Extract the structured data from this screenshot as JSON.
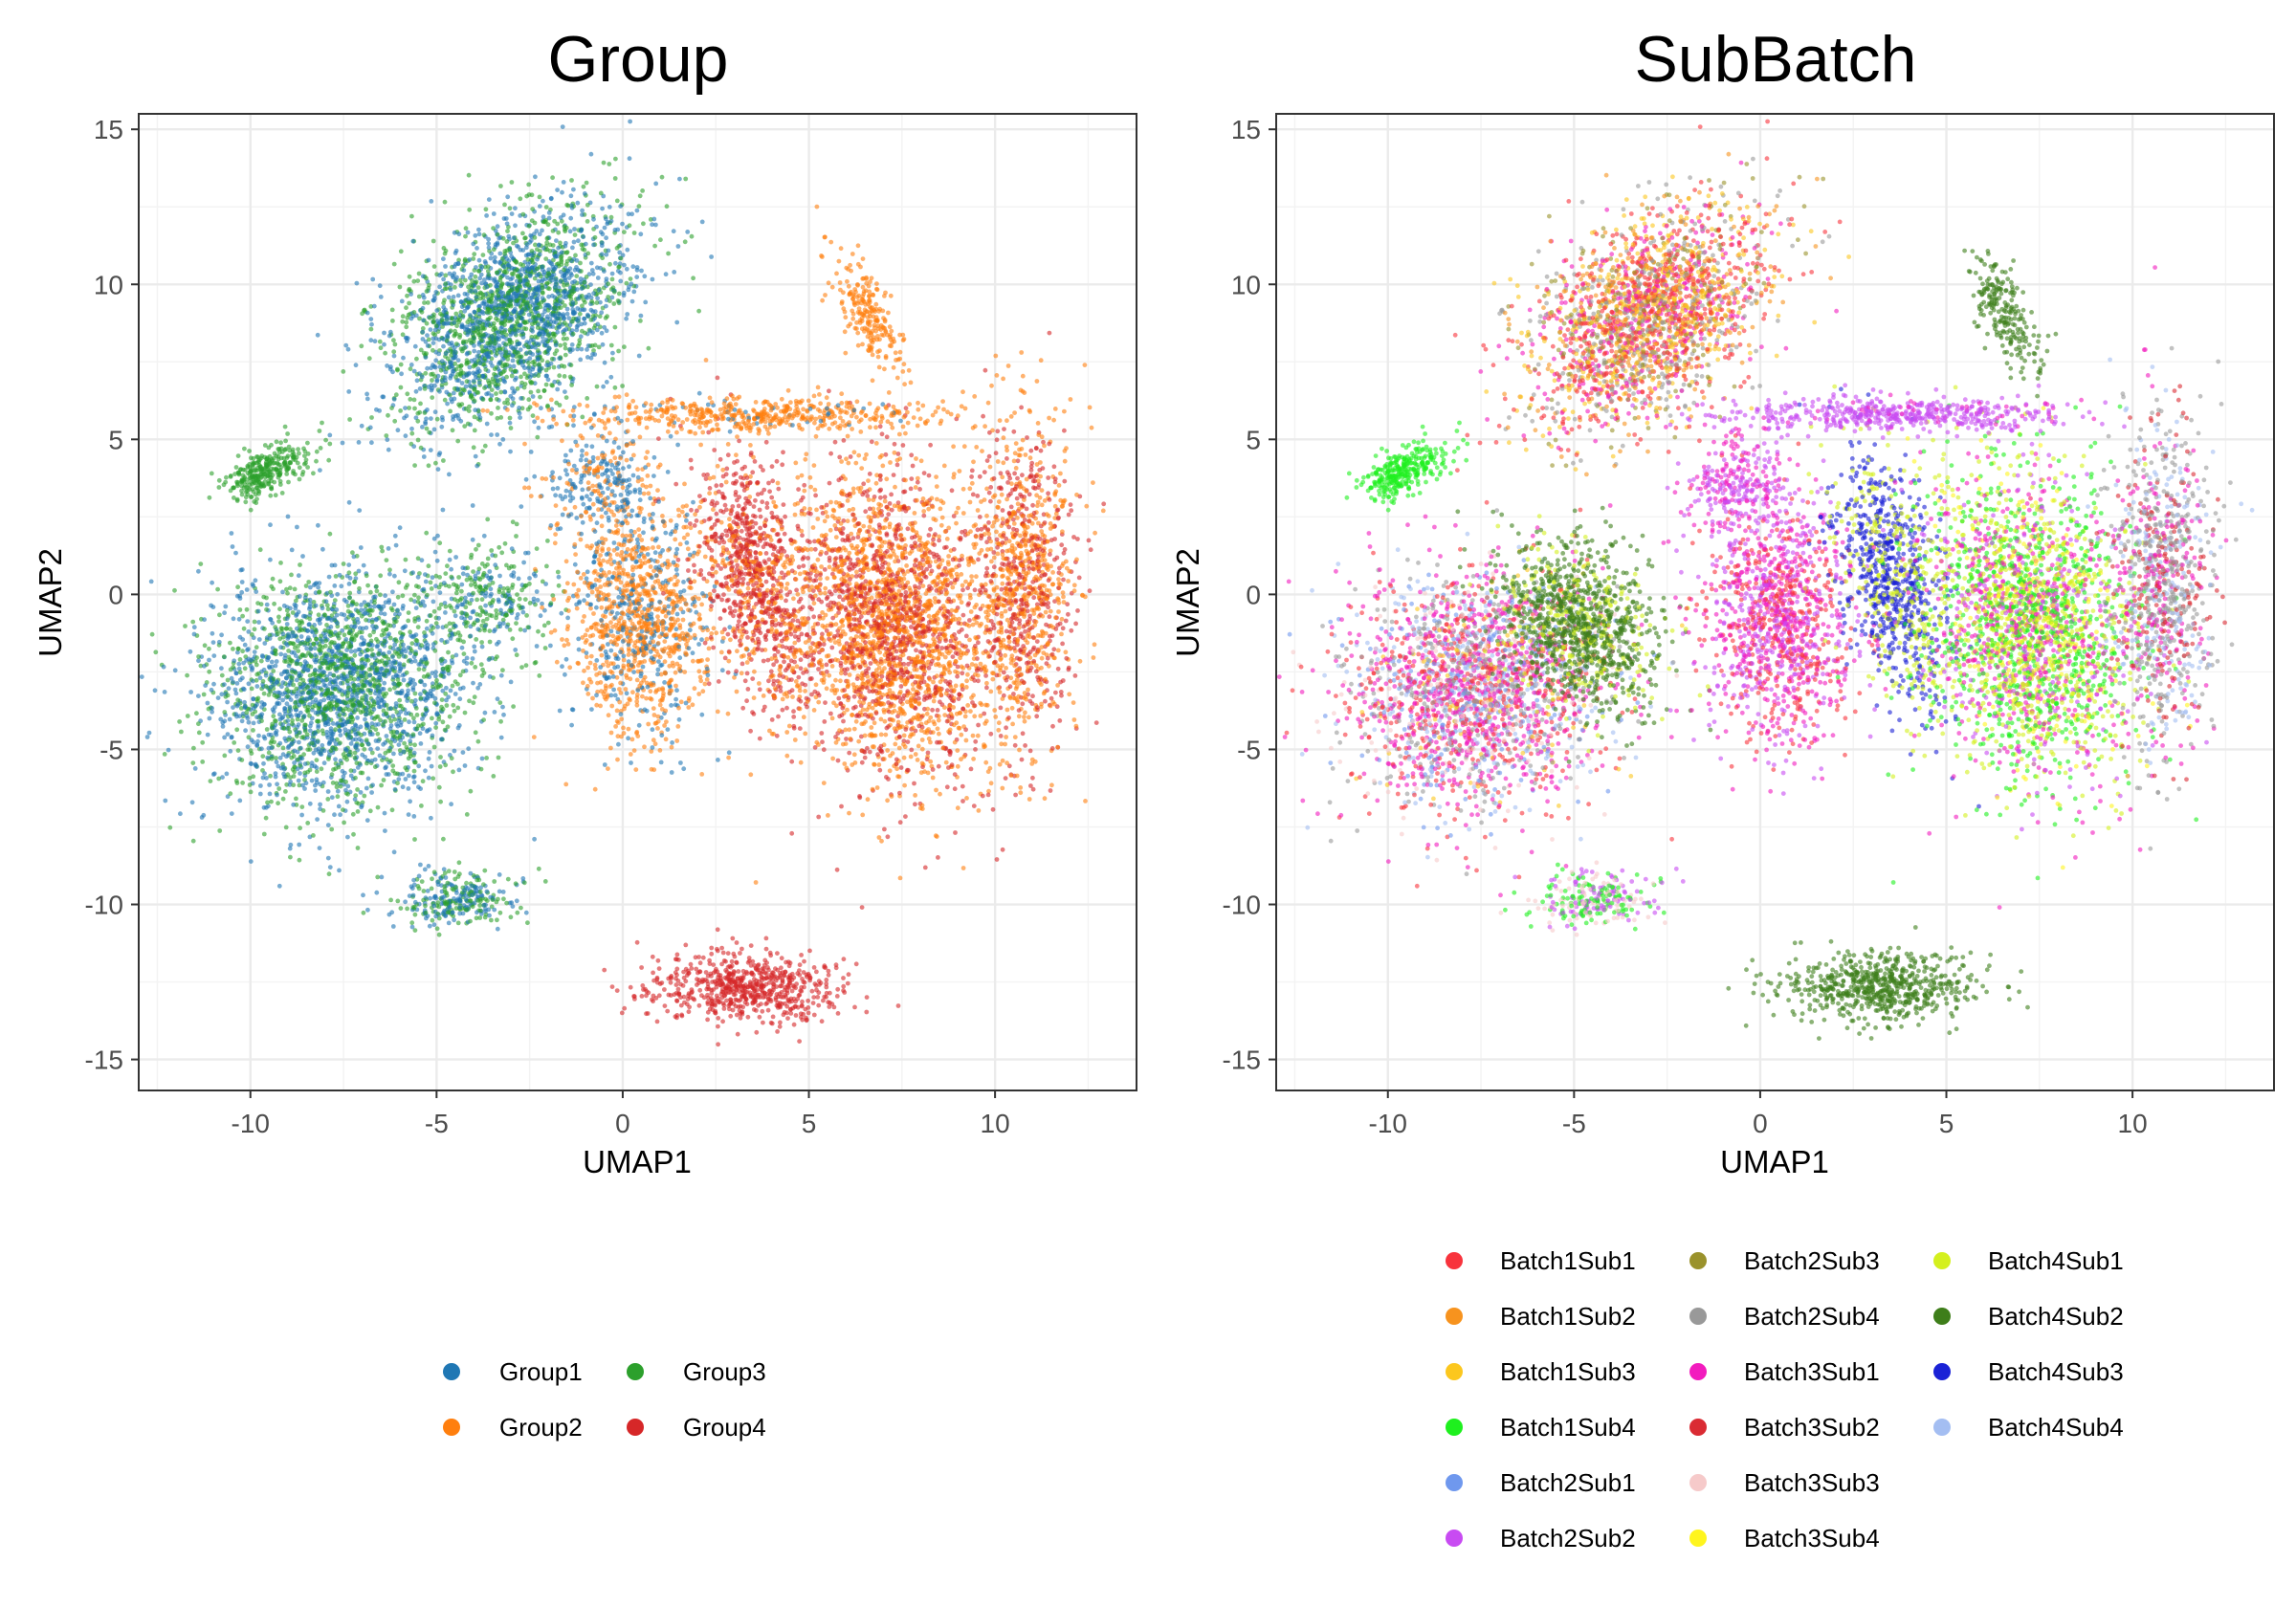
{
  "chart_data": [
    {
      "type": "scatter",
      "title": "Group",
      "xlabel": "UMAP1",
      "ylabel": "UMAP2",
      "xlim": [
        -13,
        13.8
      ],
      "ylim": [
        -16,
        15.5
      ],
      "xticks": [
        -10,
        -5,
        0,
        5,
        10
      ],
      "yticks": [
        -15,
        -10,
        -5,
        0,
        5,
        10,
        15
      ],
      "grid": true,
      "legend_position": "bottom",
      "point_alpha": 0.6,
      "series": [
        {
          "name": "Group1",
          "color": "#1F77B4"
        },
        {
          "name": "Group2",
          "color": "#FF7F0E"
        },
        {
          "name": "Group3",
          "color": "#2CA02C"
        },
        {
          "name": "Group4",
          "color": "#D62728"
        }
      ],
      "clusters": [
        {
          "center": [
            -3.0,
            9.0
          ],
          "spread": [
            2.3,
            3.6
          ],
          "rotation": -0.65,
          "n": 2400,
          "mix": {
            "Group1": 0.55,
            "Group3": 0.45
          }
        },
        {
          "center": [
            -7.6,
            -3.0
          ],
          "spread": [
            3.1,
            3.5
          ],
          "rotation": -0.3,
          "n": 2600,
          "mix": {
            "Group1": 0.55,
            "Group3": 0.45
          }
        },
        {
          "center": [
            -9.6,
            4.0
          ],
          "spread": [
            1.1,
            0.6
          ],
          "rotation": 0.6,
          "n": 300,
          "mix": {
            "Group3": 1.0
          }
        },
        {
          "center": [
            -4.5,
            -9.8
          ],
          "spread": [
            1.4,
            0.8
          ],
          "rotation": 0.2,
          "n": 300,
          "mix": {
            "Group1": 0.5,
            "Group3": 0.5
          }
        },
        {
          "center": [
            -3.6,
            0.0
          ],
          "spread": [
            1.6,
            1.6
          ],
          "rotation": 0.5,
          "n": 300,
          "mix": {
            "Group3": 0.6,
            "Group1": 0.4
          }
        },
        {
          "center": [
            0.5,
            -1.0
          ],
          "spread": [
            1.8,
            3.4
          ],
          "rotation": 0.0,
          "n": 1200,
          "mix": {
            "Group2": 0.7,
            "Group1": 0.3
          }
        },
        {
          "center": [
            3.5,
            0.5
          ],
          "spread": [
            1.2,
            3.8
          ],
          "rotation": 0.2,
          "n": 900,
          "mix": {
            "Group4": 0.75,
            "Group2": 0.25
          }
        },
        {
          "center": [
            7.2,
            -1.0
          ],
          "spread": [
            2.6,
            4.6
          ],
          "rotation": 0.15,
          "n": 2800,
          "mix": {
            "Group2": 0.6,
            "Group4": 0.4
          }
        },
        {
          "center": [
            10.8,
            0.5
          ],
          "spread": [
            1.2,
            4.8
          ],
          "rotation": 0.0,
          "n": 1000,
          "mix": {
            "Group2": 0.55,
            "Group4": 0.45
          }
        },
        {
          "center": [
            3.5,
            5.8
          ],
          "spread": [
            4.5,
            0.5
          ],
          "rotation": 0.0,
          "n": 500,
          "mix": {
            "Group2": 0.9,
            "Group1": 0.1
          }
        },
        {
          "center": [
            6.6,
            9.0
          ],
          "spread": [
            0.6,
            1.8
          ],
          "rotation": 0.35,
          "n": 220,
          "mix": {
            "Group2": 1.0
          }
        },
        {
          "center": [
            3.2,
            -12.7
          ],
          "spread": [
            2.4,
            1.0
          ],
          "rotation": 0.0,
          "n": 650,
          "mix": {
            "Group4": 1.0
          }
        },
        {
          "center": [
            -0.5,
            3.5
          ],
          "spread": [
            1.5,
            1.5
          ],
          "rotation": 0.0,
          "n": 300,
          "mix": {
            "Group1": 0.6,
            "Group2": 0.4
          }
        }
      ]
    },
    {
      "type": "scatter",
      "title": "SubBatch",
      "xlabel": "UMAP1",
      "ylabel": "UMAP2",
      "xlim": [
        -13,
        13.8
      ],
      "ylim": [
        -16,
        15.5
      ],
      "xticks": [
        -10,
        -5,
        0,
        5,
        10
      ],
      "yticks": [
        -15,
        -10,
        -5,
        0,
        5,
        10,
        15
      ],
      "grid": true,
      "legend_position": "bottom",
      "point_alpha": 0.6,
      "series": [
        {
          "name": "Batch1Sub1",
          "color": "#F8333C"
        },
        {
          "name": "Batch1Sub2",
          "color": "#F7931E"
        },
        {
          "name": "Batch1Sub3",
          "color": "#FCC71E"
        },
        {
          "name": "Batch1Sub4",
          "color": "#1EF01E"
        },
        {
          "name": "Batch2Sub1",
          "color": "#6F98EE"
        },
        {
          "name": "Batch2Sub2",
          "color": "#C84BF2"
        },
        {
          "name": "Batch2Sub3",
          "color": "#9A922C"
        },
        {
          "name": "Batch2Sub4",
          "color": "#999999"
        },
        {
          "name": "Batch3Sub1",
          "color": "#F21BBE"
        },
        {
          "name": "Batch3Sub2",
          "color": "#DA2B33"
        },
        {
          "name": "Batch3Sub3",
          "color": "#F6CACA"
        },
        {
          "name": "Batch3Sub4",
          "color": "#FFF51E"
        },
        {
          "name": "Batch4Sub1",
          "color": "#D4F01E"
        },
        {
          "name": "Batch4Sub2",
          "color": "#3E7E1A"
        },
        {
          "name": "Batch4Sub3",
          "color": "#1A22D6"
        },
        {
          "name": "Batch4Sub4",
          "color": "#A4BEF2"
        }
      ],
      "clusters": [
        {
          "center": [
            -3.0,
            9.0
          ],
          "spread": [
            2.3,
            3.6
          ],
          "rotation": -0.65,
          "n": 2400,
          "mix": {
            "Batch1Sub1": 0.25,
            "Batch1Sub3": 0.2,
            "Batch1Sub2": 0.15,
            "Batch2Sub4": 0.15,
            "Batch3Sub1": 0.15,
            "Batch2Sub3": 0.1
          }
        },
        {
          "center": [
            -7.6,
            -3.0
          ],
          "spread": [
            3.1,
            3.5
          ],
          "rotation": -0.3,
          "n": 2600,
          "mix": {
            "Batch3Sub1": 0.3,
            "Batch1Sub1": 0.2,
            "Batch2Sub4": 0.15,
            "Batch4Sub4": 0.12,
            "Batch2Sub1": 0.1,
            "Batch3Sub3": 0.08,
            "Batch1Sub3": 0.05
          }
        },
        {
          "center": [
            -9.6,
            4.0
          ],
          "spread": [
            1.1,
            0.6
          ],
          "rotation": 0.6,
          "n": 300,
          "mix": {
            "Batch1Sub4": 1.0
          }
        },
        {
          "center": [
            -4.5,
            -9.8
          ],
          "spread": [
            1.4,
            0.8
          ],
          "rotation": 0.2,
          "n": 300,
          "mix": {
            "Batch1Sub4": 0.4,
            "Batch2Sub2": 0.3,
            "Batch3Sub3": 0.3
          }
        },
        {
          "center": [
            -4.8,
            -1.0
          ],
          "spread": [
            1.8,
            2.6
          ],
          "rotation": 0.4,
          "n": 1100,
          "mix": {
            "Batch4Sub2": 0.8,
            "Batch4Sub1": 0.2
          }
        },
        {
          "center": [
            0.5,
            -1.0
          ],
          "spread": [
            1.8,
            3.4
          ],
          "rotation": 0.0,
          "n": 1200,
          "mix": {
            "Batch3Sub1": 0.4,
            "Batch1Sub1": 0.3,
            "Batch2Sub2": 0.3
          }
        },
        {
          "center": [
            3.5,
            0.5
          ],
          "spread": [
            1.2,
            3.8
          ],
          "rotation": 0.2,
          "n": 900,
          "mix": {
            "Batch4Sub3": 0.7,
            "Batch4Sub1": 0.3
          }
        },
        {
          "center": [
            7.2,
            -1.0
          ],
          "spread": [
            2.6,
            4.6
          ],
          "rotation": 0.15,
          "n": 2800,
          "mix": {
            "Batch4Sub1": 0.3,
            "Batch1Sub4": 0.3,
            "Batch3Sub1": 0.2,
            "Batch3Sub4": 0.1,
            "Batch2Sub2": 0.1
          }
        },
        {
          "center": [
            10.8,
            0.5
          ],
          "spread": [
            1.2,
            4.8
          ],
          "rotation": 0.0,
          "n": 1000,
          "mix": {
            "Batch2Sub4": 0.4,
            "Batch3Sub2": 0.2,
            "Batch4Sub4": 0.2,
            "Batch3Sub1": 0.2
          }
        },
        {
          "center": [
            3.5,
            5.8
          ],
          "spread": [
            4.5,
            0.5
          ],
          "rotation": 0.0,
          "n": 500,
          "mix": {
            "Batch2Sub2": 0.9,
            "Batch3Sub1": 0.1
          }
        },
        {
          "center": [
            6.6,
            9.0
          ],
          "spread": [
            0.6,
            1.8
          ],
          "rotation": 0.35,
          "n": 220,
          "mix": {
            "Batch4Sub2": 1.0
          }
        },
        {
          "center": [
            3.2,
            -12.7
          ],
          "spread": [
            2.4,
            1.0
          ],
          "rotation": 0.0,
          "n": 650,
          "mix": {
            "Batch4Sub2": 1.0
          }
        },
        {
          "center": [
            -0.5,
            3.5
          ],
          "spread": [
            1.5,
            1.5
          ],
          "rotation": 0.0,
          "n": 300,
          "mix": {
            "Batch2Sub2": 0.5,
            "Batch3Sub1": 0.5
          }
        }
      ]
    }
  ]
}
